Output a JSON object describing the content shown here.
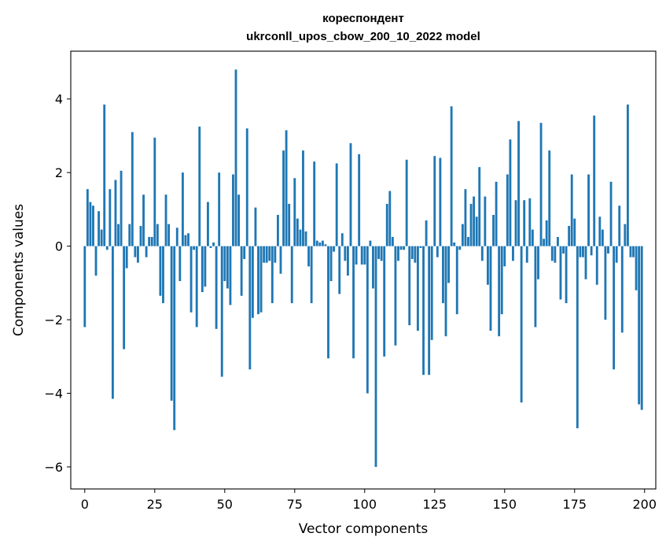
{
  "chart_data": {
    "type": "bar",
    "title_line1": "кореспондент",
    "title_line2": "ukrconll_upos_cbow_200_10_2022 model",
    "xlabel": "Vector components",
    "ylabel": "Components values",
    "xlim": [
      -5,
      204
    ],
    "ylim": [
      -6.6,
      5.3
    ],
    "x_ticks": [
      0,
      25,
      50,
      75,
      100,
      125,
      150,
      175,
      200
    ],
    "x_tick_labels": [
      "0",
      "25",
      "50",
      "75",
      "100",
      "125",
      "150",
      "175",
      "200"
    ],
    "y_ticks": [
      4,
      2,
      0,
      -2,
      -4,
      -6
    ],
    "y_tick_labels": [
      "4",
      "2",
      "0",
      "−2",
      "−4",
      "−6"
    ],
    "bar_color": "#1f77b4",
    "grid": false,
    "x": [
      0,
      1,
      2,
      3,
      4,
      5,
      6,
      7,
      8,
      9,
      10,
      11,
      12,
      13,
      14,
      15,
      16,
      17,
      18,
      19,
      20,
      21,
      22,
      23,
      24,
      25,
      26,
      27,
      28,
      29,
      30,
      31,
      32,
      33,
      34,
      35,
      36,
      37,
      38,
      39,
      40,
      41,
      42,
      43,
      44,
      45,
      46,
      47,
      48,
      49,
      50,
      51,
      52,
      53,
      54,
      55,
      56,
      57,
      58,
      59,
      60,
      61,
      62,
      63,
      64,
      65,
      66,
      67,
      68,
      69,
      70,
      71,
      72,
      73,
      74,
      75,
      76,
      77,
      78,
      79,
      80,
      81,
      82,
      83,
      84,
      85,
      86,
      87,
      88,
      89,
      90,
      91,
      92,
      93,
      94,
      95,
      96,
      97,
      98,
      99,
      100,
      101,
      102,
      103,
      104,
      105,
      106,
      107,
      108,
      109,
      110,
      111,
      112,
      113,
      114,
      115,
      116,
      117,
      118,
      119,
      120,
      121,
      122,
      123,
      124,
      125,
      126,
      127,
      128,
      129,
      130,
      131,
      132,
      133,
      134,
      135,
      136,
      137,
      138,
      139,
      140,
      141,
      142,
      143,
      144,
      145,
      146,
      147,
      148,
      149,
      150,
      151,
      152,
      153,
      154,
      155,
      156,
      157,
      158,
      159,
      160,
      161,
      162,
      163,
      164,
      165,
      166,
      167,
      168,
      169,
      170,
      171,
      172,
      173,
      174,
      175,
      176,
      177,
      178,
      179,
      180,
      181,
      182,
      183,
      184,
      185,
      186,
      187,
      188,
      189,
      190,
      191,
      192,
      193,
      194,
      195,
      196,
      197,
      198,
      199
    ],
    "values": [
      -2.2,
      1.55,
      1.2,
      1.1,
      -0.8,
      0.95,
      0.45,
      3.85,
      -0.1,
      1.55,
      -4.15,
      1.8,
      0.6,
      2.05,
      -2.8,
      -0.6,
      0.6,
      3.1,
      -0.3,
      -0.45,
      0.55,
      1.4,
      -0.3,
      0.25,
      0.25,
      2.95,
      0.6,
      -1.35,
      -1.55,
      1.4,
      0.6,
      -4.2,
      -5.0,
      0.5,
      -0.95,
      2.0,
      0.3,
      0.35,
      -1.8,
      -0.1,
      -2.2,
      3.25,
      -1.25,
      -1.1,
      1.2,
      -0.05,
      0.1,
      -2.25,
      2.0,
      -3.55,
      -0.95,
      -1.15,
      -1.6,
      1.95,
      4.8,
      1.4,
      -1.35,
      -0.35,
      3.2,
      -3.35,
      -1.95,
      1.05,
      -1.85,
      -1.8,
      -0.45,
      -0.45,
      -0.4,
      -1.55,
      -0.45,
      0.85,
      -0.75,
      2.6,
      3.15,
      1.15,
      -1.55,
      1.85,
      0.75,
      0.45,
      2.6,
      0.4,
      -0.55,
      -1.55,
      2.3,
      0.15,
      0.1,
      0.15,
      0.05,
      -3.05,
      -0.95,
      -0.15,
      2.25,
      -1.3,
      0.35,
      -0.4,
      -0.8,
      2.8,
      -3.05,
      -0.5,
      2.5,
      -0.5,
      -0.5,
      -4.0,
      0.15,
      -1.15,
      -6.0,
      -0.35,
      -0.4,
      -3.0,
      1.15,
      1.5,
      0.25,
      -2.7,
      -0.4,
      -0.1,
      -0.1,
      2.35,
      -2.15,
      -0.35,
      -0.45,
      -2.3,
      -0.05,
      -3.5,
      0.7,
      -3.5,
      -2.55,
      2.45,
      -0.3,
      2.4,
      -1.55,
      -2.45,
      -1.0,
      3.8,
      0.1,
      -1.85,
      -0.1,
      0.6,
      1.55,
      0.25,
      1.15,
      1.35,
      0.8,
      2.15,
      -0.4,
      1.35,
      -1.05,
      -2.3,
      0.85,
      1.75,
      -2.45,
      -1.85,
      -0.55,
      1.95,
      2.9,
      -0.4,
      1.25,
      3.4,
      -4.25,
      1.25,
      -0.45,
      1.3,
      0.45,
      -2.2,
      -0.9,
      3.35,
      0.2,
      0.7,
      2.6,
      -0.4,
      -0.45,
      0.25,
      -1.45,
      -0.2,
      -1.55,
      0.55,
      1.95,
      0.75,
      -4.95,
      -0.3,
      -0.3,
      -0.9,
      1.95,
      -0.25,
      3.55,
      -1.05,
      0.8,
      0.45,
      -2.0,
      -0.2,
      1.75,
      -3.35,
      -0.45,
      1.1,
      -2.35,
      0.6,
      3.85,
      -0.3,
      -0.3,
      -1.2,
      -4.3,
      -4.45
    ]
  }
}
